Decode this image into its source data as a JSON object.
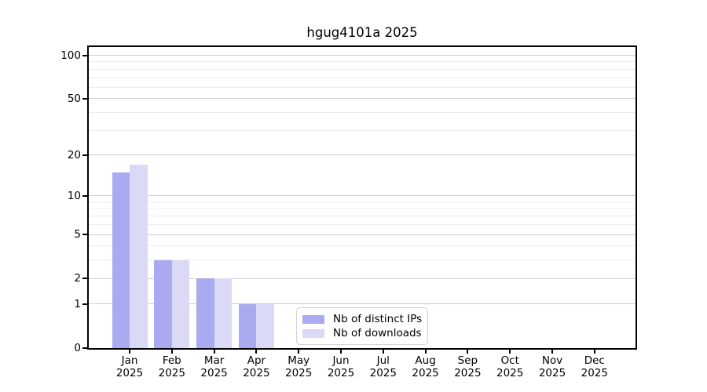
{
  "chart_data": {
    "type": "bar",
    "title": "hgug4101a 2025",
    "categories": [
      "Jan",
      "Feb",
      "Mar",
      "Apr",
      "May",
      "Jun",
      "Jul",
      "Aug",
      "Sep",
      "Oct",
      "Nov",
      "Dec"
    ],
    "x_year_label": "2025",
    "series": [
      {
        "name": "Nb of distinct IPs",
        "color": "#aaaaf0",
        "values": [
          15,
          3,
          2,
          1,
          0,
          0,
          0,
          0,
          0,
          0,
          0,
          0
        ]
      },
      {
        "name": "Nb of downloads",
        "color": "#dadaf7",
        "values": [
          17,
          3,
          2,
          1,
          0,
          0,
          0,
          0,
          0,
          0,
          0,
          0
        ]
      }
    ],
    "y_axis": {
      "scale": "log1p",
      "ticks": [
        0,
        1,
        2,
        5,
        10,
        20,
        50,
        100
      ],
      "minor_ticks": [
        3,
        4,
        6,
        7,
        8,
        9,
        30,
        40,
        60,
        70,
        80,
        90
      ],
      "range": [
        0,
        114
      ]
    },
    "x_axis": {
      "grid": false
    },
    "legend": {
      "position": "bottom-center",
      "labels": [
        "Nb of distinct IPs",
        "Nb of downloads"
      ]
    }
  }
}
